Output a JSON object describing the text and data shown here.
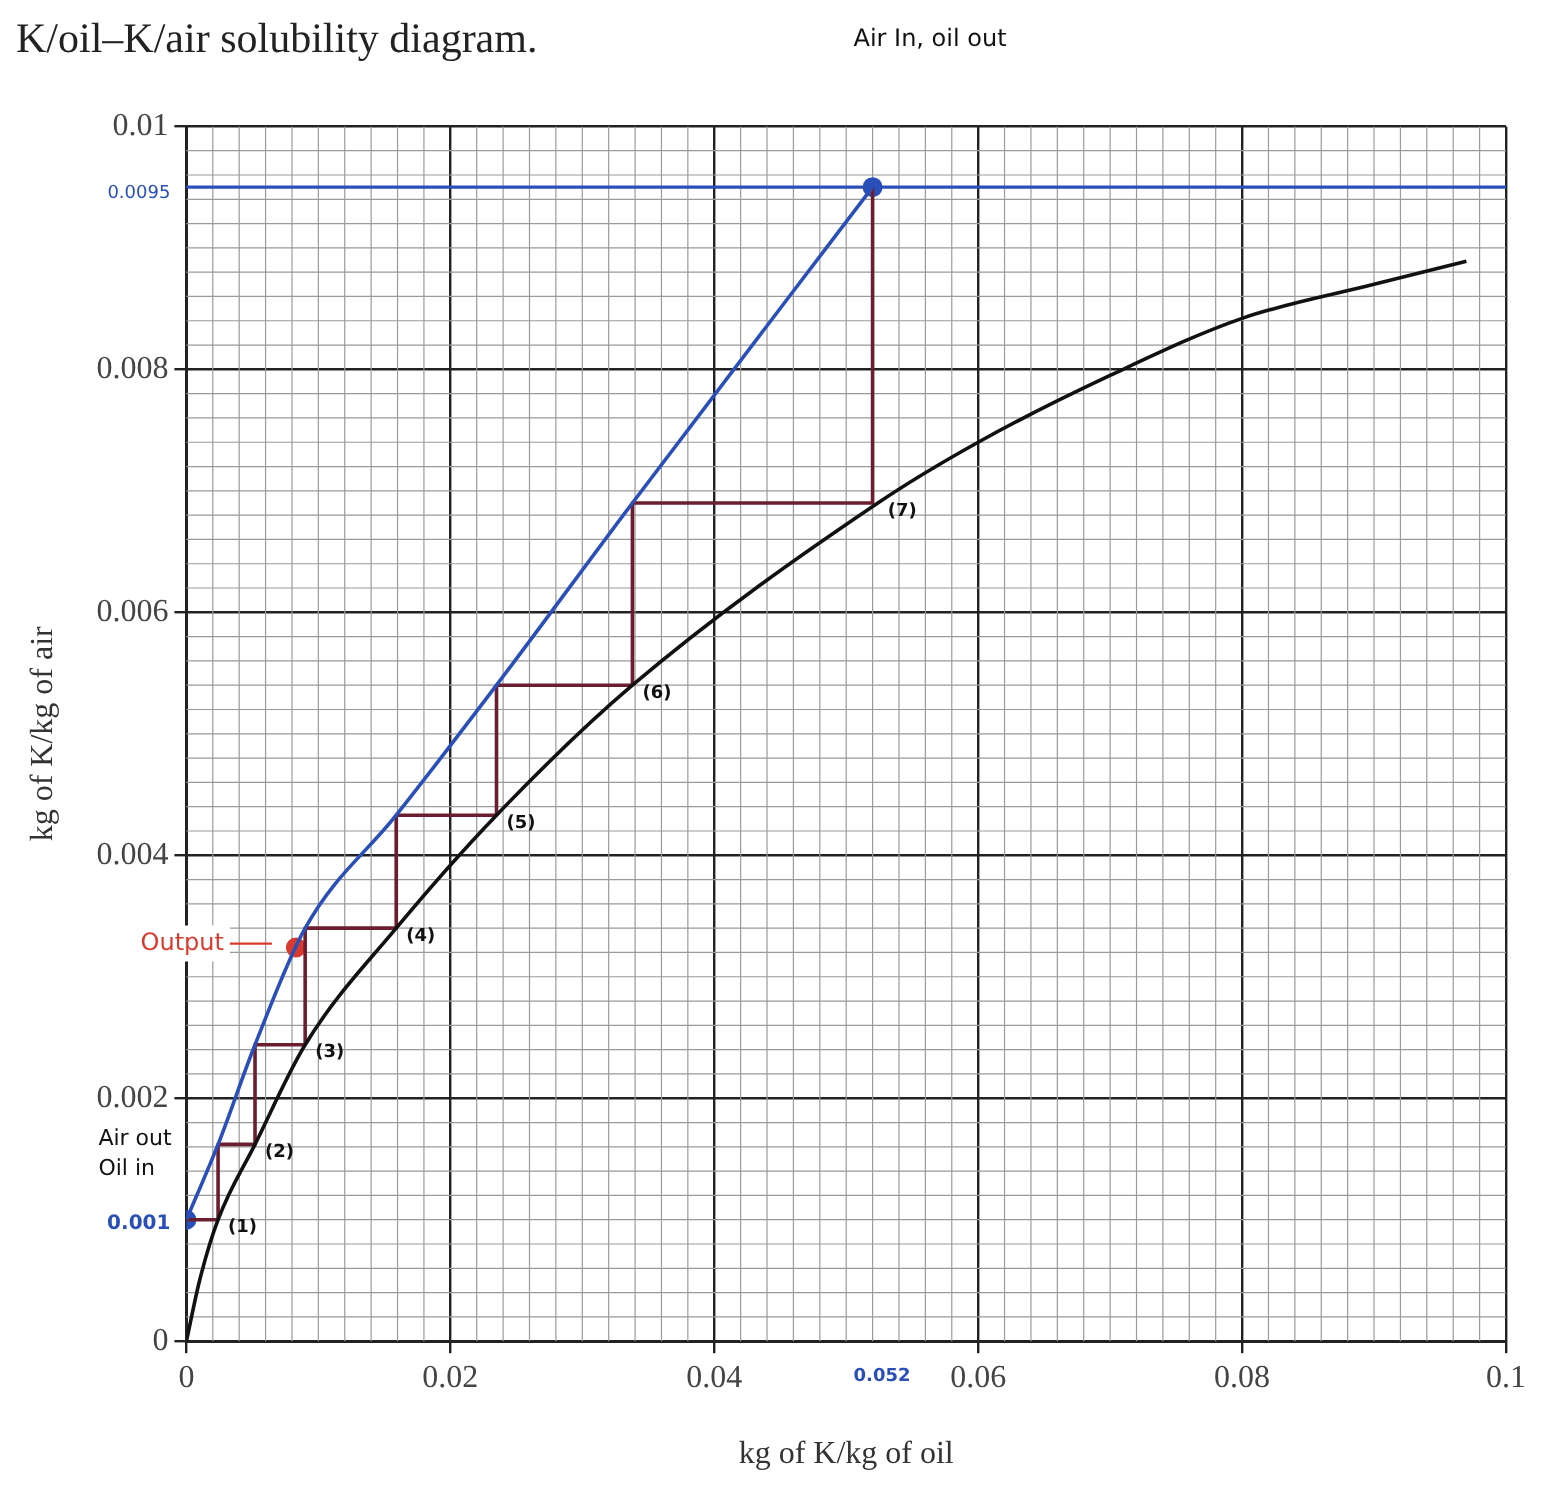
{
  "chart_data": {
    "type": "line",
    "title": "K/oil–K/air solubility diagram.",
    "xlabel": "kg of K/kg of oil",
    "ylabel": "kg of K/kg of air",
    "xlim": [
      0,
      0.1
    ],
    "xticks": [
      0,
      0.02,
      0.04,
      0.06,
      0.08,
      0.1
    ],
    "ylim": [
      0,
      0.01
    ],
    "yticks": [
      0,
      0.002,
      0.004,
      0.006,
      0.008,
      0.01
    ],
    "grid": true,
    "legend": false,
    "series": [
      {
        "type": "line",
        "color": "#111111",
        "x": [
          0,
          0.001,
          0.0024,
          0.0052,
          0.009,
          0.0159,
          0.0235,
          0.0338,
          0.0524,
          0.06,
          0.07,
          0.08,
          0.09,
          0.097
        ],
        "values": [
          0,
          0.0005,
          0.001,
          0.00162,
          0.00244,
          0.0034,
          0.00433,
          0.0054,
          0.0069,
          0.0074,
          0.00795,
          0.00842,
          0.0087,
          0.00889
        ]
      },
      {
        "type": "line",
        "color": "#2a4fb8",
        "x": [
          0,
          0.0024,
          0.0052,
          0.009,
          0.0159,
          0.0235,
          0.0338,
          0.052
        ],
        "values": [
          0.001,
          0.00162,
          0.00244,
          0.0034,
          0.00433,
          0.0054,
          0.0069,
          0.0095
        ]
      },
      {
        "type": "line",
        "color": "#6b1f2e",
        "x": [
          0,
          0.0024,
          0.0024,
          0.0052,
          0.0052,
          0.009,
          0.009,
          0.0159,
          0.0159,
          0.0235,
          0.0235,
          0.0338,
          0.0338,
          0.052,
          0.052
        ],
        "values": [
          0.001,
          0.001,
          0.00162,
          0.00162,
          0.00244,
          0.00244,
          0.0034,
          0.0034,
          0.00433,
          0.00433,
          0.0054,
          0.0054,
          0.0069,
          0.0069,
          0.0095
        ]
      },
      {
        "type": "scatter",
        "color": "#2a4fb8",
        "x": [
          0,
          0.052
        ],
        "values": [
          0.001,
          0.0095
        ]
      },
      {
        "type": "scatter",
        "color": "#d83a2e",
        "x": [
          0.0083
        ],
        "values": [
          0.00324
        ]
      }
    ],
    "ref_lines": [
      {
        "axis": "y",
        "value": 0.0095,
        "label": "0.0095",
        "color": "#2a4fb8"
      }
    ],
    "annotations": [
      "Air In, oil out",
      {
        "text": "Air out\nOil in",
        "x": 0,
        "y": 0.001
      },
      {
        "text": "0.001",
        "x": 0,
        "y": 0.001
      },
      "0.052",
      {
        "text": "Output",
        "x": 0.0083,
        "y": 0.00324
      },
      {
        "text": "(1)",
        "x": 0.0024,
        "y": 0.001
      },
      {
        "text": "(2)",
        "x": 0.0052,
        "y": 0.00162
      },
      {
        "text": "(3)",
        "x": 0.009,
        "y": 0.00244
      },
      {
        "text": "(4)",
        "x": 0.0159,
        "y": 0.0034
      },
      {
        "text": "(5)",
        "x": 0.0235,
        "y": 0.00433
      },
      {
        "text": "(6)",
        "x": 0.0338,
        "y": 0.0054
      },
      {
        "text": "(7)",
        "x": 0.0524,
        "y": 0.0069
      }
    ]
  }
}
